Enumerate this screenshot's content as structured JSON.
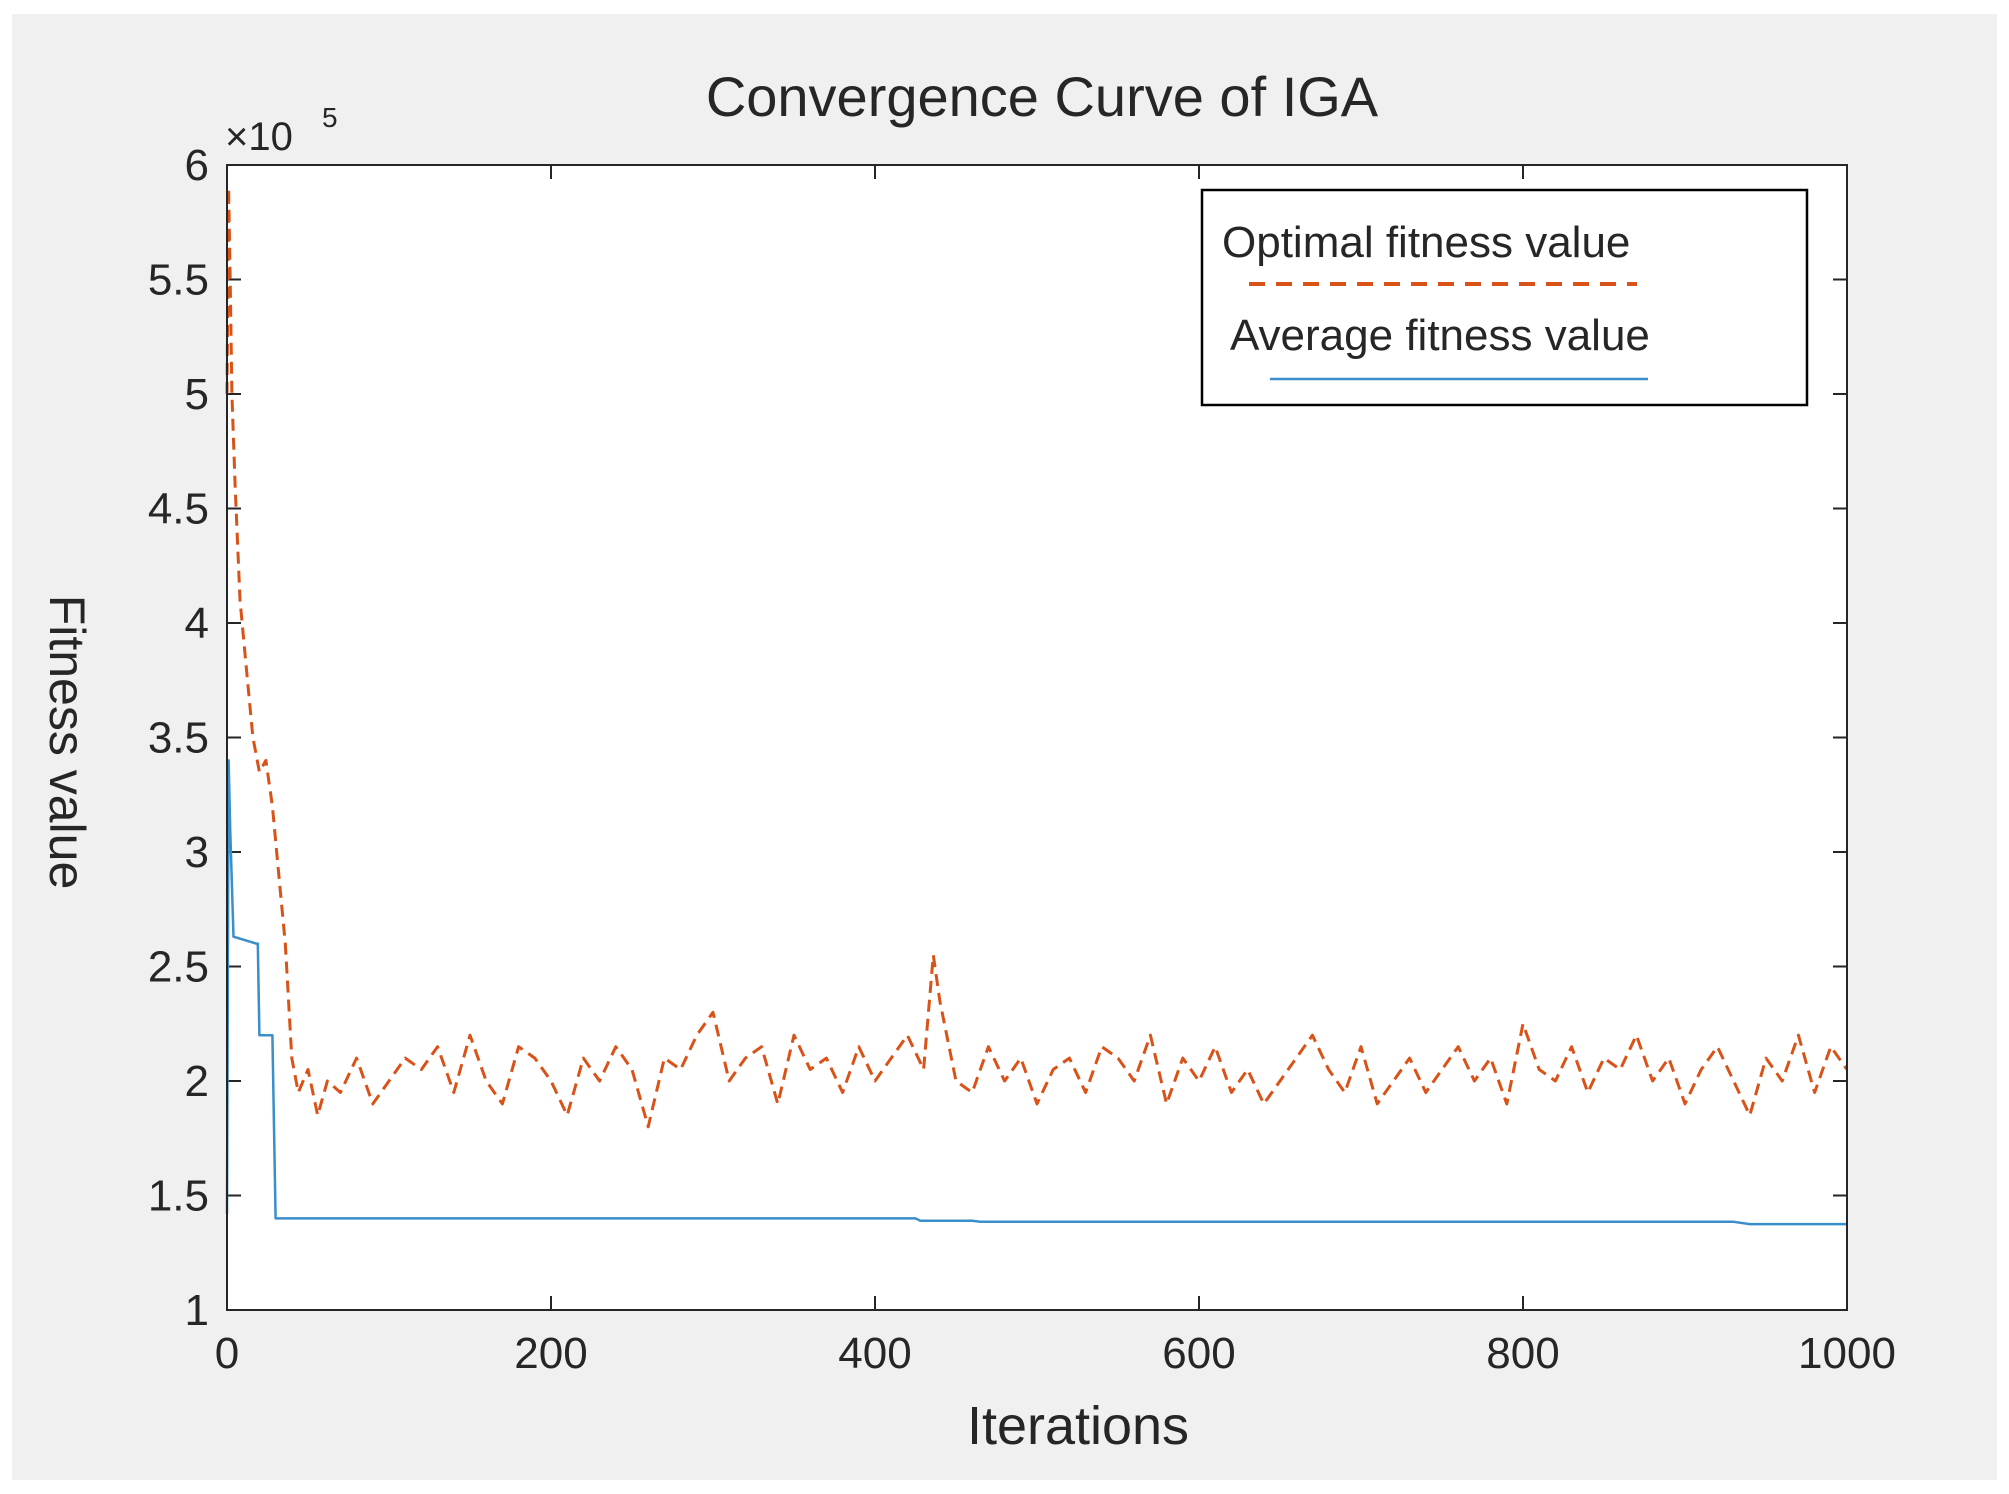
{
  "chart_data": {
    "type": "line",
    "title": "Convergence Curve of IGA",
    "xlabel": "Iterations",
    "ylabel": "Fitness value",
    "xlim": [
      0,
      1000
    ],
    "ylim": [
      1,
      6
    ],
    "y_multiplier_base": "×10",
    "y_multiplier_exp": "5",
    "xticks": [
      0,
      200,
      400,
      600,
      800,
      1000
    ],
    "yticks": [
      1,
      1.5,
      2,
      2.5,
      3,
      3.5,
      4,
      4.5,
      5,
      5.5,
      6
    ],
    "xtick_labels": [
      "0",
      "200",
      "400",
      "600",
      "800",
      "1000"
    ],
    "ytick_labels": [
      "1",
      "1.5",
      "2",
      "2.5",
      "3",
      "3.5",
      "4",
      "4.5",
      "5",
      "5.5",
      "6"
    ],
    "legend_position": "top-right",
    "series": [
      {
        "name": "Optimal fitness value",
        "color": "#d95319",
        "style": "dashed",
        "x": [
          0,
          1,
          2,
          3,
          5,
          8,
          12,
          16,
          20,
          24,
          28,
          32,
          36,
          40,
          44,
          50,
          56,
          62,
          70,
          80,
          90,
          100,
          110,
          120,
          130,
          140,
          150,
          160,
          170,
          180,
          190,
          200,
          210,
          220,
          230,
          240,
          250,
          260,
          270,
          280,
          290,
          300,
          310,
          320,
          330,
          340,
          350,
          360,
          370,
          380,
          390,
          400,
          410,
          420,
          430,
          436,
          440,
          450,
          460,
          470,
          480,
          490,
          500,
          510,
          520,
          530,
          540,
          550,
          560,
          570,
          580,
          590,
          600,
          610,
          620,
          630,
          640,
          650,
          660,
          670,
          680,
          690,
          700,
          710,
          720,
          730,
          740,
          750,
          760,
          770,
          780,
          790,
          800,
          810,
          820,
          830,
          840,
          850,
          860,
          870,
          880,
          890,
          900,
          910,
          920,
          930,
          940,
          950,
          960,
          970,
          980,
          990,
          1000
        ],
        "y": [
          5.0,
          5.9,
          5.5,
          5.0,
          4.6,
          4.1,
          3.8,
          3.5,
          3.35,
          3.4,
          3.2,
          2.9,
          2.6,
          2.1,
          1.95,
          2.05,
          1.85,
          2.0,
          1.95,
          2.1,
          1.9,
          2.0,
          2.1,
          2.05,
          2.15,
          1.95,
          2.2,
          2.0,
          1.9,
          2.15,
          2.1,
          2.0,
          1.85,
          2.1,
          2.0,
          2.15,
          2.05,
          1.8,
          2.1,
          2.05,
          2.2,
          2.3,
          2.0,
          2.1,
          2.15,
          1.9,
          2.2,
          2.05,
          2.1,
          1.95,
          2.15,
          2.0,
          2.1,
          2.2,
          2.05,
          2.55,
          2.35,
          2.0,
          1.95,
          2.15,
          2.0,
          2.1,
          1.9,
          2.05,
          2.1,
          1.95,
          2.15,
          2.1,
          2.0,
          2.2,
          1.9,
          2.1,
          2.0,
          2.15,
          1.95,
          2.05,
          1.9,
          2.0,
          2.1,
          2.2,
          2.05,
          1.95,
          2.15,
          1.9,
          2.0,
          2.1,
          1.95,
          2.05,
          2.15,
          2.0,
          2.1,
          1.9,
          2.25,
          2.05,
          2.0,
          2.15,
          1.95,
          2.1,
          2.05,
          2.2,
          2.0,
          2.1,
          1.9,
          2.05,
          2.15,
          2.0,
          1.85,
          2.1,
          2.0,
          2.2,
          1.95,
          2.15,
          2.05
        ]
      },
      {
        "name": "Average fitness value",
        "color": "#3a8ec9",
        "style": "solid",
        "x": [
          0,
          1,
          2,
          4,
          18,
          19,
          20,
          28,
          30,
          32,
          40,
          100,
          200,
          300,
          425,
          428,
          430,
          460,
          465,
          500,
          600,
          700,
          800,
          930,
          940,
          1000
        ],
        "y": [
          1.42,
          3.4,
          3.1,
          2.63,
          2.6,
          2.6,
          2.2,
          2.2,
          1.4,
          1.4,
          1.4,
          1.4,
          1.4,
          1.4,
          1.4,
          1.39,
          1.39,
          1.39,
          1.385,
          1.385,
          1.385,
          1.385,
          1.385,
          1.385,
          1.375,
          1.375
        ]
      }
    ]
  }
}
